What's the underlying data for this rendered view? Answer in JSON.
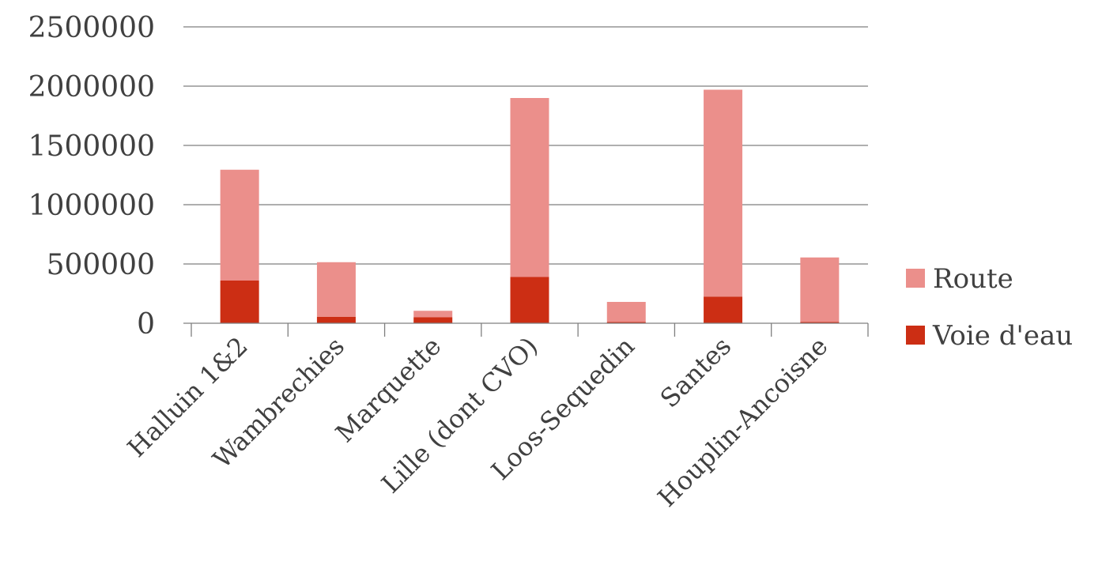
{
  "chart_data": {
    "type": "bar",
    "stacked": true,
    "title": "",
    "xlabel": "",
    "ylabel": "",
    "categories": [
      "Halluin 1&2",
      "Wambrechies",
      "Marquette",
      "Lille (dont CVO)",
      "Loos-Sequedin",
      "Santes",
      "Houplin-Ancoisne"
    ],
    "series": [
      {
        "name": "Voie d'eau",
        "color": "#CC2E14",
        "values": [
          360000,
          55000,
          50000,
          390000,
          10000,
          225000,
          10000
        ]
      },
      {
        "name": "Route",
        "color": "#EB8F8B",
        "values": [
          935000,
          460000,
          55000,
          1510000,
          170000,
          1745000,
          545000
        ]
      }
    ],
    "ylim": [
      0,
      2500000
    ],
    "yticks": [
      "0",
      "500000",
      "1000000",
      "1500000",
      "2000000",
      "2500000"
    ],
    "ytick_values": [
      0,
      500000,
      1000000,
      1500000,
      2000000,
      2500000
    ],
    "grid": true,
    "legend_position": "right",
    "legend_order": [
      "Route",
      "Voie d'eau"
    ]
  }
}
